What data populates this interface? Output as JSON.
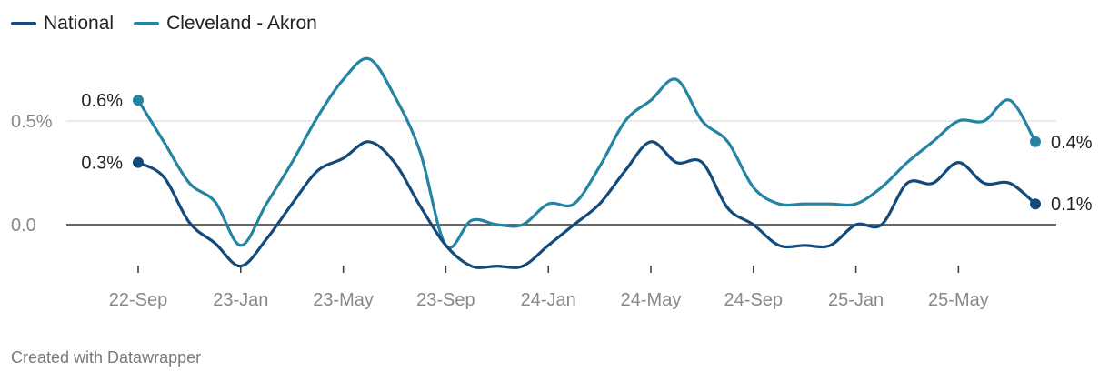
{
  "colors": {
    "national": "#134a7c",
    "cleveland": "#2384a4",
    "grid": "#e3e3e3",
    "axis": "#333333",
    "tick_text": "#888888"
  },
  "footer": {
    "credit": "Created with Datawrapper"
  },
  "chart_data": {
    "type": "line",
    "title": "",
    "xlabel": "",
    "ylabel": "",
    "ylim": [
      -0.2,
      0.8
    ],
    "y_ticks": [
      {
        "value": 0.5,
        "label": "0.5%"
      },
      {
        "value": 0.0,
        "label": "0.0"
      }
    ],
    "x_ticks": [
      {
        "t": 0,
        "label": "22-Sep"
      },
      {
        "t": 4,
        "label": "23-Jan"
      },
      {
        "t": 8,
        "label": "23-May"
      },
      {
        "t": 12,
        "label": "23-Sep"
      },
      {
        "t": 16,
        "label": "24-Jan"
      },
      {
        "t": 20,
        "label": "24-May"
      },
      {
        "t": 24,
        "label": "24-Sep"
      },
      {
        "t": 28,
        "label": "25-Jan"
      },
      {
        "t": 32,
        "label": "25-May"
      }
    ],
    "series": [
      {
        "name": "National",
        "color": "#134a7c",
        "start_label": "0.3%",
        "end_label": "0.1%",
        "points": [
          [
            0,
            0.3
          ],
          [
            1,
            0.23
          ],
          [
            2,
            0.01
          ],
          [
            3,
            -0.09
          ],
          [
            4,
            -0.2
          ],
          [
            5,
            -0.07
          ],
          [
            6,
            0.1
          ],
          [
            7,
            0.26
          ],
          [
            8,
            0.32
          ],
          [
            9,
            0.4
          ],
          [
            10,
            0.3
          ],
          [
            11,
            0.09
          ],
          [
            12,
            -0.1
          ],
          [
            13,
            -0.2
          ],
          [
            14,
            -0.2
          ],
          [
            15,
            -0.2
          ],
          [
            16,
            -0.1
          ],
          [
            17,
            0.0
          ],
          [
            18,
            0.1
          ],
          [
            19,
            0.26
          ],
          [
            20,
            0.4
          ],
          [
            21,
            0.3
          ],
          [
            22,
            0.3
          ],
          [
            23,
            0.08
          ],
          [
            24,
            0.0
          ],
          [
            25,
            -0.1
          ],
          [
            26,
            -0.1
          ],
          [
            27,
            -0.1
          ],
          [
            28,
            0.0
          ],
          [
            29,
            0.0
          ],
          [
            30,
            0.2
          ],
          [
            31,
            0.2
          ],
          [
            32,
            0.3
          ],
          [
            33,
            0.2
          ],
          [
            34,
            0.2
          ],
          [
            35,
            0.1
          ]
        ]
      },
      {
        "name": "Cleveland - Akron",
        "color": "#2384a4",
        "start_label": "0.6%",
        "end_label": "0.4%",
        "points": [
          [
            0,
            0.6
          ],
          [
            1,
            0.4
          ],
          [
            2,
            0.2
          ],
          [
            3,
            0.11
          ],
          [
            4,
            -0.1
          ],
          [
            5,
            0.1
          ],
          [
            6,
            0.3
          ],
          [
            7,
            0.52
          ],
          [
            8,
            0.7
          ],
          [
            9,
            0.8
          ],
          [
            10,
            0.62
          ],
          [
            11,
            0.35
          ],
          [
            12,
            -0.1
          ],
          [
            13,
            0.02
          ],
          [
            14,
            0.0
          ],
          [
            15,
            0.0
          ],
          [
            16,
            0.1
          ],
          [
            17,
            0.1
          ],
          [
            18,
            0.28
          ],
          [
            19,
            0.5
          ],
          [
            20,
            0.6
          ],
          [
            21,
            0.7
          ],
          [
            22,
            0.5
          ],
          [
            23,
            0.4
          ],
          [
            24,
            0.18
          ],
          [
            25,
            0.1
          ],
          [
            26,
            0.1
          ],
          [
            27,
            0.1
          ],
          [
            28,
            0.1
          ],
          [
            29,
            0.18
          ],
          [
            30,
            0.3
          ],
          [
            31,
            0.4
          ],
          [
            32,
            0.5
          ],
          [
            33,
            0.5
          ],
          [
            34,
            0.6
          ],
          [
            35,
            0.4
          ]
        ]
      }
    ]
  }
}
